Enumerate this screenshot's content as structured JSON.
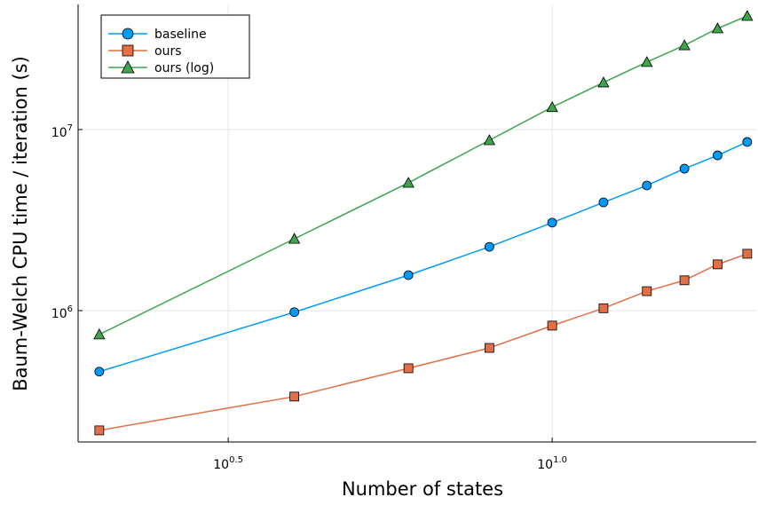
{
  "chart_data": {
    "type": "line",
    "xlabel": "Number of states",
    "ylabel": "Baum-Welch CPU time / iteration (s)",
    "x": [
      2,
      4,
      6,
      8,
      10,
      12,
      14,
      16,
      18,
      20
    ],
    "series": [
      {
        "name": "baseline",
        "color": "#009afa",
        "marker": "circle",
        "values": [
          460000,
          980000,
          1570000,
          2250000,
          3060000,
          3960000,
          4910000,
          6080000,
          7200000,
          8540000
        ]
      },
      {
        "name": "ours",
        "color": "#e26f46",
        "marker": "square",
        "values": [
          218000,
          335000,
          480000,
          622000,
          826000,
          1030000,
          1280000,
          1470000,
          1800000,
          2060000
        ]
      },
      {
        "name": "ours (log)",
        "color": "#3ea44e",
        "marker": "triangle",
        "values": [
          738000,
          2490000,
          5080000,
          8730000,
          13300000,
          18200000,
          23600000,
          29200000,
          36200000,
          42400000
        ]
      }
    ],
    "xscale": "log",
    "yscale": "log",
    "xlim": [
      1.855,
      20.65
    ],
    "ylim": [
      188000,
      49100000
    ],
    "xticks": [
      {
        "value": 3.16228,
        "label": "10^0.5"
      },
      {
        "value": 10,
        "label": "10^1.0"
      }
    ],
    "yticks": [
      {
        "value": 1000000,
        "label": "10^6"
      },
      {
        "value": 10000000,
        "label": "10^7"
      }
    ],
    "grid": true,
    "legend": "upper left"
  }
}
